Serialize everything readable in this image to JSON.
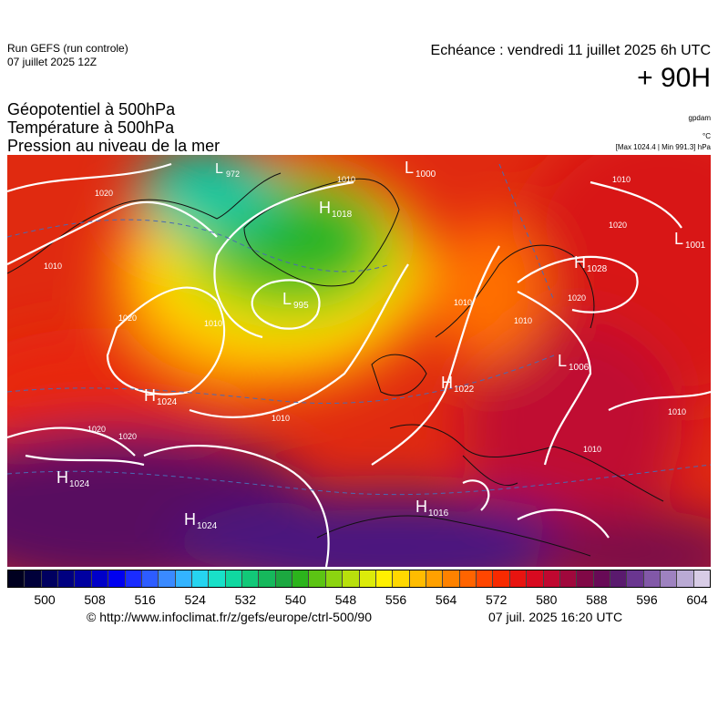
{
  "header": {
    "run_title": "Run GEFS (run controle)",
    "run_date": "07 juillet 2025 12Z",
    "echeance": "Echéance : vendredi 11 juillet 2025 6h UTC",
    "horizon": "+ 90H"
  },
  "parameters": [
    "Géopotentiel à 500hPa",
    "Température à 500hPa",
    "Pression au niveau de la mer"
  ],
  "units": {
    "geopotential": "gpdam",
    "temperature": "°C",
    "pressure_range": "[Max 1024.4 | Min 991.3] hPa"
  },
  "colorbar": {
    "colors": [
      "#000020",
      "#00003a",
      "#000060",
      "#000080",
      "#0000a0",
      "#0000c8",
      "#0000f0",
      "#1a2cff",
      "#2d5cff",
      "#3a8aff",
      "#33b4ff",
      "#26d4f0",
      "#19e0c8",
      "#10d8a0",
      "#12c878",
      "#16b85c",
      "#1ca840",
      "#2cb41c",
      "#5cc414",
      "#8cd410",
      "#b8e00c",
      "#dceb0a",
      "#fff000",
      "#ffd800",
      "#ffbc00",
      "#ffa000",
      "#ff8200",
      "#ff6400",
      "#ff4600",
      "#f82a00",
      "#e81410",
      "#d80a20",
      "#c00830",
      "#a0083c",
      "#800846",
      "#680a56",
      "#5a1a6e",
      "#6a3690",
      "#8258a8",
      "#9e82c0",
      "#baaad4",
      "#d8cce6"
    ],
    "tick_labels": [
      "500",
      "508",
      "516",
      "524",
      "532",
      "540",
      "548",
      "556",
      "564",
      "572",
      "580",
      "588",
      "596",
      "604"
    ]
  },
  "map": {
    "pressure_centers": [
      {
        "type": "L",
        "value": "972"
      },
      {
        "type": "H",
        "value": "1018"
      },
      {
        "type": "L",
        "value": "1000"
      },
      {
        "type": "L",
        "value": "995"
      },
      {
        "type": "H",
        "value": "1028"
      },
      {
        "type": "L",
        "value": "1001"
      },
      {
        "type": "L",
        "value": "1006"
      },
      {
        "type": "H",
        "value": "1022"
      },
      {
        "type": "H",
        "value": "1024"
      },
      {
        "type": "H",
        "value": "1024"
      },
      {
        "type": "H",
        "value": "1024"
      },
      {
        "type": "H",
        "value": "1016"
      }
    ],
    "isobar_labels": [
      "1010",
      "1010",
      "1020",
      "1010",
      "1010",
      "1020",
      "1020",
      "1020",
      "1020",
      "1010",
      "1010",
      "1010",
      "1020",
      "1010",
      "1010"
    ]
  },
  "footer": {
    "copyright": "© http://www.infoclimat.fr/z/gefs/europe/ctrl-500/90",
    "generated": "07 juil. 2025 16:20 UTC"
  }
}
